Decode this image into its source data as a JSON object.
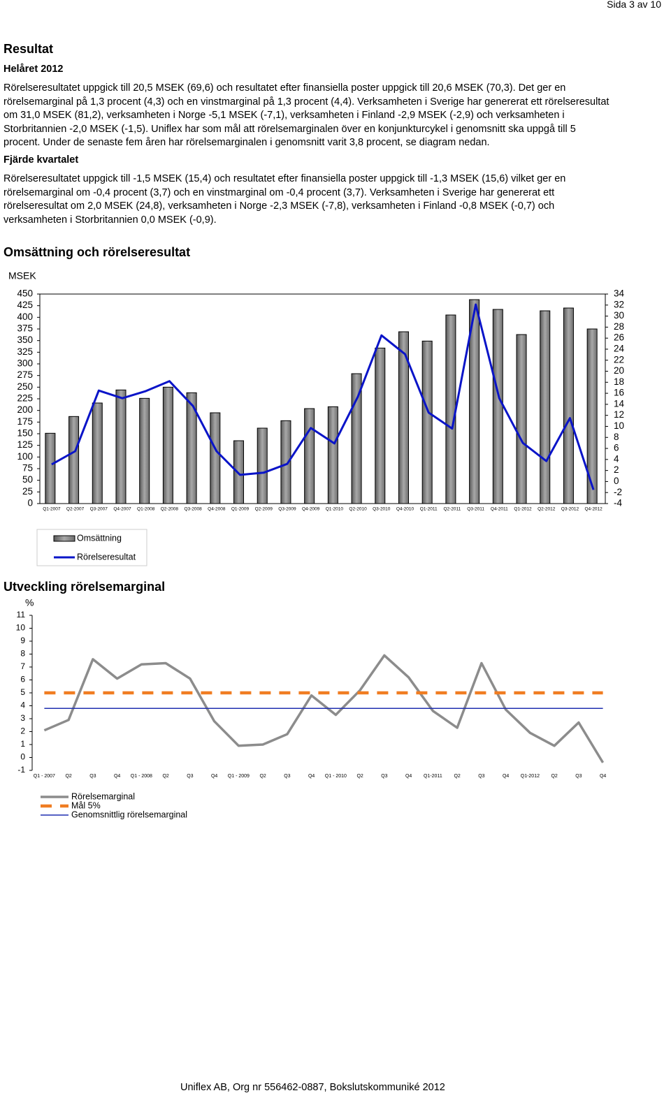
{
  "header": {
    "page": "Sida 3 av 10"
  },
  "section": {
    "title": "Resultat",
    "subsections": [
      {
        "title": "Helåret 2012",
        "text": "Rörelseresultatet uppgick till 20,5 MSEK (69,6) och resultatet efter finansiella poster uppgick till 20,6 MSEK (70,3). Det ger en rörelsemarginal på 1,3 procent (4,3) och en vinstmarginal på 1,3 procent (4,4). Verksamheten i Sverige har genererat ett rörelseresultat om 31,0 MSEK (81,2), verksamheten i Norge -5,1 MSEK (-7,1), verksamheten i Finland -2,9 MSEK (-2,9) och verksamheten i Storbritannien -2,0 MSEK (-1,5). Uniflex har som mål att rörelsemarginalen över en konjunkturcykel i genomsnitt ska uppgå till 5 procent. Under de senaste fem åren har rörelsemarginalen i genomsnitt varit 3,8 procent, se diagram nedan."
      },
      {
        "title": "Fjärde kvartalet",
        "text": "Rörelseresultatet uppgick till -1,5 MSEK (15,4) och resultatet efter finansiella poster uppgick till -1,3 MSEK (15,6) vilket ger en rörelsemarginal om -0,4 procent (3,7) och en vinstmarginal om -0,4 procent (3,7). Verksamheten i Sverige har genererat ett rörelseresultat om 2,0 MSEK (24,8), verksamheten i Norge -2,3 MSEK (-7,8), verksamheten i Finland -0,8 MSEK (-0,7) och verksamheten i Storbritannien 0,0 MSEK (-0,9)."
      }
    ]
  },
  "chart_data": [
    {
      "type": "bar",
      "title": "Omsättning och rörelseresultat",
      "y_label": "MSEK",
      "categories": [
        "Q1-2007",
        "Q2-2007",
        "Q3-2007",
        "Q4-2007",
        "Q1-2008",
        "Q2-2008",
        "Q3-2008",
        "Q4-2008",
        "Q1-2009",
        "Q2-2009",
        "Q3-2009",
        "Q4-2009",
        "Q1-2010",
        "Q2-2010",
        "Q3-2010",
        "Q4-2010",
        "Q1-2011",
        "Q2-2011",
        "Q3-2011",
        "Q4-2011",
        "Q1-2012",
        "Q2-2012",
        "Q3-2012",
        "Q4-2012"
      ],
      "series": [
        {
          "name": "Omsättning",
          "color": "#8c8c8c",
          "values": [
            151,
            187,
            216,
            244,
            226,
            250,
            238,
            195,
            135,
            162,
            178,
            204,
            208,
            279,
            334,
            369,
            349,
            405,
            438,
            417,
            363,
            414,
            420,
            375
          ]
        },
        {
          "name": "Rörelseresultat",
          "type": "line",
          "axis": "y2",
          "color": "#0a14c8",
          "values": [
            3.1,
            5.5,
            16.5,
            15.1,
            16.4,
            18.2,
            13.7,
            5.5,
            1.2,
            1.6,
            3.2,
            9.7,
            6.9,
            15.4,
            26.5,
            23.1,
            12.5,
            9.6,
            32.1,
            15.1,
            7.0,
            3.7,
            11.5,
            -1.5
          ]
        }
      ],
      "ylim": [
        0,
        450
      ],
      "yticks": [
        0,
        25,
        50,
        75,
        100,
        125,
        150,
        175,
        200,
        225,
        250,
        275,
        300,
        325,
        350,
        375,
        400,
        425,
        450
      ],
      "y2lim": [
        -4,
        34
      ],
      "y2ticks": [
        -4,
        -2,
        0,
        2,
        4,
        6,
        8,
        10,
        12,
        14,
        16,
        18,
        20,
        22,
        24,
        26,
        28,
        30,
        32,
        34
      ],
      "legend": "bottom-left"
    },
    {
      "type": "line",
      "title": "Utveckling rörelsemarginal",
      "y_label": "%",
      "categories": [
        "Q1 - 2007",
        "Q2",
        "Q3",
        "Q4",
        "Q1 - 2008",
        "Q2",
        "Q3",
        "Q4",
        "Q1 - 2009",
        "Q2",
        "Q3",
        "Q4",
        "Q1 - 2010",
        "Q2",
        "Q3",
        "Q4",
        "Q1-2011",
        "Q2",
        "Q3",
        "Q4",
        "Q1-2012",
        "Q2",
        "Q3",
        "Q4"
      ],
      "series": [
        {
          "name": "Rörelsemarginal",
          "color": "#8c8c8c",
          "values": [
            2.1,
            2.9,
            7.6,
            6.1,
            7.2,
            7.3,
            6.1,
            2.8,
            0.9,
            1.0,
            1.8,
            4.8,
            3.3,
            5.2,
            7.9,
            6.2,
            3.6,
            2.3,
            7.3,
            3.7,
            1.9,
            0.9,
            2.7,
            -0.4
          ]
        },
        {
          "name": "Mål 5%",
          "color": "#f07d22",
          "linestyle": "dashed",
          "values": [
            5,
            5,
            5,
            5,
            5,
            5,
            5,
            5,
            5,
            5,
            5,
            5,
            5,
            5,
            5,
            5,
            5,
            5,
            5,
            5,
            5,
            5,
            5,
            5
          ]
        },
        {
          "name": "Genomsnittlig rörelsemarginal",
          "color": "#1f2fb0",
          "values": [
            3.8,
            3.8,
            3.8,
            3.8,
            3.8,
            3.8,
            3.8,
            3.8,
            3.8,
            3.8,
            3.8,
            3.8,
            3.8,
            3.8,
            3.8,
            3.8,
            3.8,
            3.8,
            3.8,
            3.8,
            3.8,
            3.8,
            3.8,
            3.8
          ]
        }
      ],
      "ylim": [
        -1,
        11
      ],
      "yticks": [
        -1,
        0,
        1,
        2,
        3,
        4,
        5,
        6,
        7,
        8,
        9,
        10,
        11
      ],
      "legend": "bottom-left"
    }
  ],
  "footer": "Uniflex AB, Org nr 556462-0887, Bokslutskommuniké 2012"
}
